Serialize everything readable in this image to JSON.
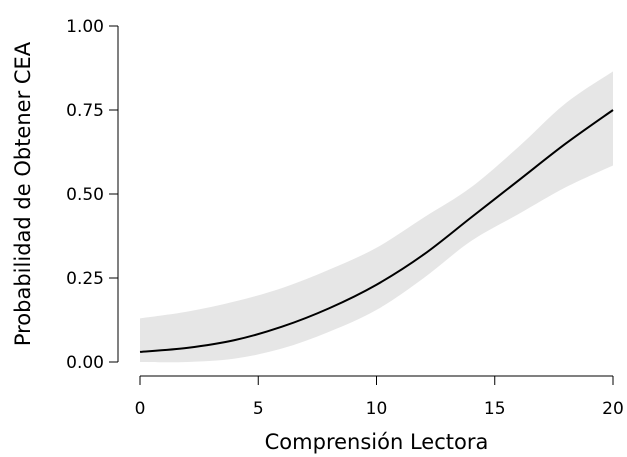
{
  "chart_data": {
    "type": "line",
    "title": "",
    "xlabel": "Comprensión Lectora",
    "ylabel": "Probabilidad de Obtener CEA",
    "xlim": [
      0,
      20
    ],
    "ylim": [
      0,
      1
    ],
    "xticks": [
      0,
      5,
      10,
      15,
      20
    ],
    "yticks": [
      0,
      0.25,
      0.5,
      0.75,
      1
    ],
    "xtick_labels": [
      "0",
      "5",
      "10",
      "15",
      "20"
    ],
    "ytick_labels": [
      "0.00",
      "0.25",
      "0.50",
      "0.75",
      "1.00"
    ],
    "grid": false,
    "colors": {
      "line": "#000000",
      "band": "#e6e6e6"
    },
    "series": [
      {
        "x": [
          0,
          2,
          4,
          6,
          8,
          10,
          12,
          14,
          16,
          18,
          20
        ],
        "y": [
          0.03,
          0.042,
          0.065,
          0.105,
          0.16,
          0.23,
          0.32,
          0.43,
          0.54,
          0.65,
          0.75
        ],
        "lower": [
          0.0,
          0.0,
          0.01,
          0.04,
          0.09,
          0.155,
          0.25,
          0.36,
          0.44,
          0.52,
          0.585
        ],
        "upper": [
          0.13,
          0.15,
          0.18,
          0.22,
          0.275,
          0.34,
          0.43,
          0.52,
          0.64,
          0.77,
          0.865
        ]
      }
    ]
  }
}
